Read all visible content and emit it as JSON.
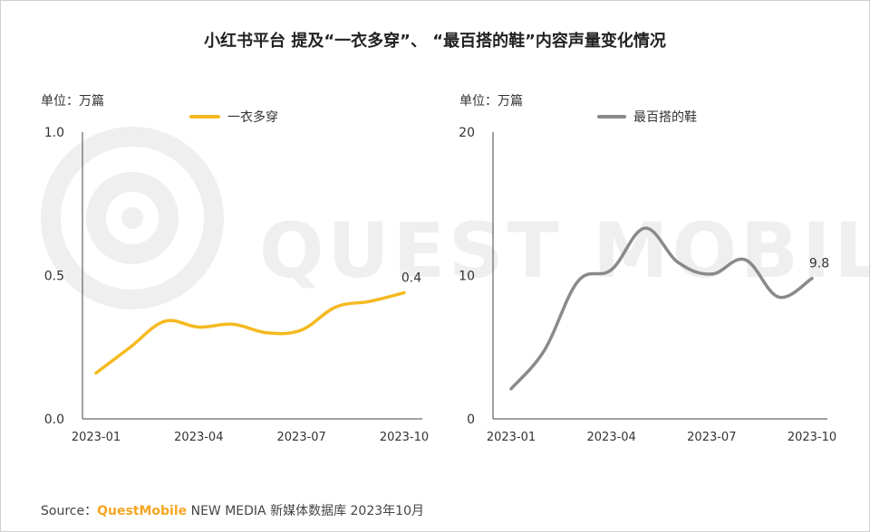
{
  "title": "小红书平台 提及“一衣多穿”、 “最百搭的鞋”内容声量变化情况",
  "watermark": "QUEST MOBILE",
  "source": {
    "label": "Source：",
    "brand": "QuestMobile",
    "suffix": " NEW MEDIA 新媒体数据库 2023年10月"
  },
  "colors": {
    "series1": "#F5B920",
    "series2": "#8A8A8A",
    "brand": "#F5A623",
    "axis": "#444444",
    "watermark": "#EFEFEF"
  },
  "chart_data": [
    {
      "type": "line",
      "unit_label": "单位：万篇",
      "legend": "一衣多穿",
      "x": [
        "2023-01",
        "2023-02",
        "2023-03",
        "2023-04",
        "2023-05",
        "2023-06",
        "2023-07",
        "2023-08",
        "2023-09",
        "2023-10"
      ],
      "xticks": [
        "2023-01",
        "2023-04",
        "2023-07",
        "2023-10"
      ],
      "values": [
        0.16,
        0.25,
        0.34,
        0.32,
        0.33,
        0.3,
        0.31,
        0.39,
        0.41,
        0.44
      ],
      "ylim": [
        0,
        1.0
      ],
      "yticks": [
        "0.0",
        "0.5",
        "1.0"
      ],
      "end_label": "0.4"
    },
    {
      "type": "line",
      "unit_label": "单位：万篇",
      "legend": "最百搭的鞋",
      "x": [
        "2023-01",
        "2023-02",
        "2023-03",
        "2023-04",
        "2023-05",
        "2023-06",
        "2023-07",
        "2023-08",
        "2023-09",
        "2023-10"
      ],
      "xticks": [
        "2023-01",
        "2023-04",
        "2023-07",
        "2023-10"
      ],
      "values": [
        2.1,
        4.8,
        9.6,
        10.4,
        13.3,
        10.9,
        10.1,
        11.1,
        8.5,
        9.8
      ],
      "ylim": [
        0,
        20
      ],
      "yticks": [
        "0",
        "10",
        "20"
      ],
      "end_label": "9.8"
    }
  ]
}
